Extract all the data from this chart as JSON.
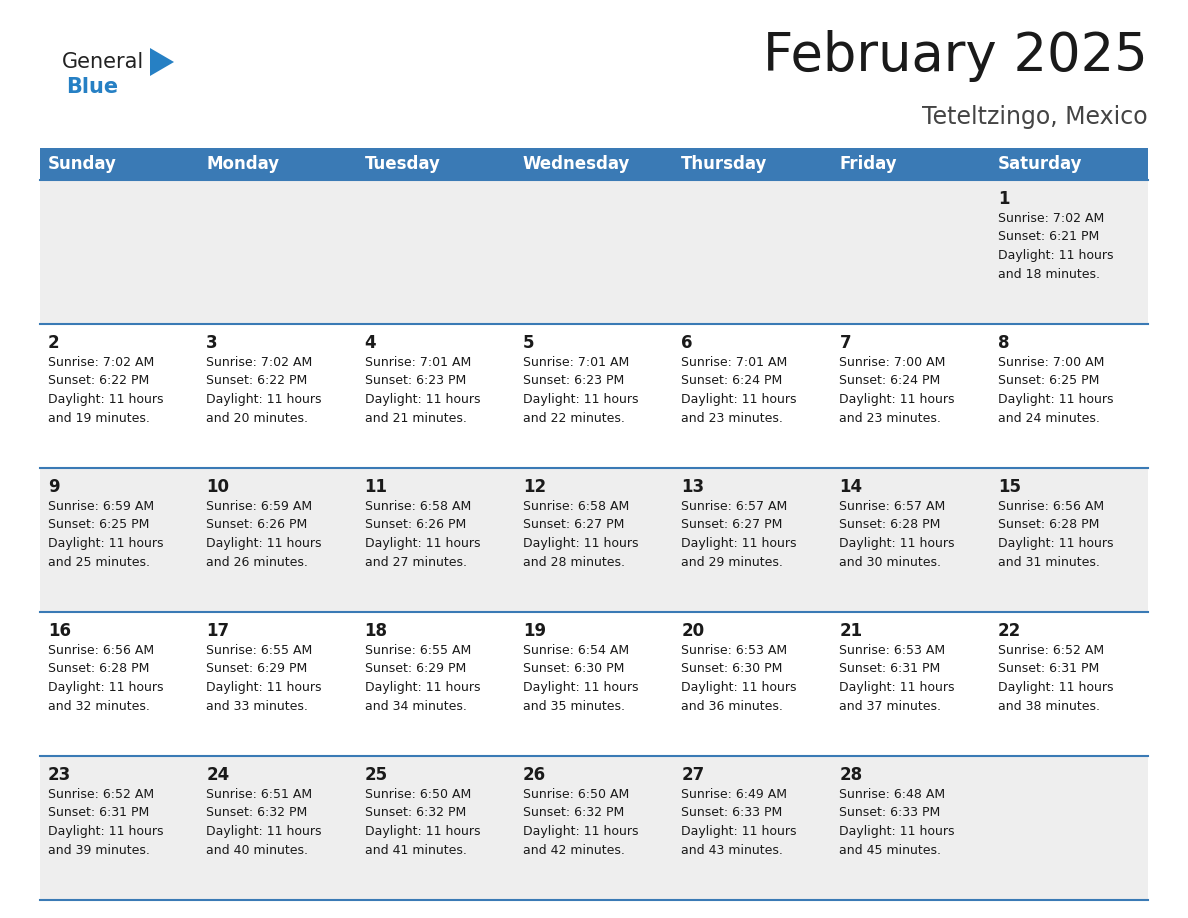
{
  "title": "February 2025",
  "subtitle": "Teteltzingo, Mexico",
  "header_bg_color": "#3a7ab5",
  "header_text_color": "#ffffff",
  "row_bg_colors": [
    "#eeeeee",
    "#ffffff",
    "#eeeeee",
    "#ffffff",
    "#eeeeee"
  ],
  "day_headers": [
    "Sunday",
    "Monday",
    "Tuesday",
    "Wednesday",
    "Thursday",
    "Friday",
    "Saturday"
  ],
  "calendar_data": [
    [
      null,
      null,
      null,
      null,
      null,
      null,
      {
        "day": "1",
        "sunrise": "7:02 AM",
        "sunset": "6:21 PM",
        "daylight": "11 hours\nand 18 minutes."
      }
    ],
    [
      {
        "day": "2",
        "sunrise": "7:02 AM",
        "sunset": "6:22 PM",
        "daylight": "11 hours\nand 19 minutes."
      },
      {
        "day": "3",
        "sunrise": "7:02 AM",
        "sunset": "6:22 PM",
        "daylight": "11 hours\nand 20 minutes."
      },
      {
        "day": "4",
        "sunrise": "7:01 AM",
        "sunset": "6:23 PM",
        "daylight": "11 hours\nand 21 minutes."
      },
      {
        "day": "5",
        "sunrise": "7:01 AM",
        "sunset": "6:23 PM",
        "daylight": "11 hours\nand 22 minutes."
      },
      {
        "day": "6",
        "sunrise": "7:01 AM",
        "sunset": "6:24 PM",
        "daylight": "11 hours\nand 23 minutes."
      },
      {
        "day": "7",
        "sunrise": "7:00 AM",
        "sunset": "6:24 PM",
        "daylight": "11 hours\nand 23 minutes."
      },
      {
        "day": "8",
        "sunrise": "7:00 AM",
        "sunset": "6:25 PM",
        "daylight": "11 hours\nand 24 minutes."
      }
    ],
    [
      {
        "day": "9",
        "sunrise": "6:59 AM",
        "sunset": "6:25 PM",
        "daylight": "11 hours\nand 25 minutes."
      },
      {
        "day": "10",
        "sunrise": "6:59 AM",
        "sunset": "6:26 PM",
        "daylight": "11 hours\nand 26 minutes."
      },
      {
        "day": "11",
        "sunrise": "6:58 AM",
        "sunset": "6:26 PM",
        "daylight": "11 hours\nand 27 minutes."
      },
      {
        "day": "12",
        "sunrise": "6:58 AM",
        "sunset": "6:27 PM",
        "daylight": "11 hours\nand 28 minutes."
      },
      {
        "day": "13",
        "sunrise": "6:57 AM",
        "sunset": "6:27 PM",
        "daylight": "11 hours\nand 29 minutes."
      },
      {
        "day": "14",
        "sunrise": "6:57 AM",
        "sunset": "6:28 PM",
        "daylight": "11 hours\nand 30 minutes."
      },
      {
        "day": "15",
        "sunrise": "6:56 AM",
        "sunset": "6:28 PM",
        "daylight": "11 hours\nand 31 minutes."
      }
    ],
    [
      {
        "day": "16",
        "sunrise": "6:56 AM",
        "sunset": "6:28 PM",
        "daylight": "11 hours\nand 32 minutes."
      },
      {
        "day": "17",
        "sunrise": "6:55 AM",
        "sunset": "6:29 PM",
        "daylight": "11 hours\nand 33 minutes."
      },
      {
        "day": "18",
        "sunrise": "6:55 AM",
        "sunset": "6:29 PM",
        "daylight": "11 hours\nand 34 minutes."
      },
      {
        "day": "19",
        "sunrise": "6:54 AM",
        "sunset": "6:30 PM",
        "daylight": "11 hours\nand 35 minutes."
      },
      {
        "day": "20",
        "sunrise": "6:53 AM",
        "sunset": "6:30 PM",
        "daylight": "11 hours\nand 36 minutes."
      },
      {
        "day": "21",
        "sunrise": "6:53 AM",
        "sunset": "6:31 PM",
        "daylight": "11 hours\nand 37 minutes."
      },
      {
        "day": "22",
        "sunrise": "6:52 AM",
        "sunset": "6:31 PM",
        "daylight": "11 hours\nand 38 minutes."
      }
    ],
    [
      {
        "day": "23",
        "sunrise": "6:52 AM",
        "sunset": "6:31 PM",
        "daylight": "11 hours\nand 39 minutes."
      },
      {
        "day": "24",
        "sunrise": "6:51 AM",
        "sunset": "6:32 PM",
        "daylight": "11 hours\nand 40 minutes."
      },
      {
        "day": "25",
        "sunrise": "6:50 AM",
        "sunset": "6:32 PM",
        "daylight": "11 hours\nand 41 minutes."
      },
      {
        "day": "26",
        "sunrise": "6:50 AM",
        "sunset": "6:32 PM",
        "daylight": "11 hours\nand 42 minutes."
      },
      {
        "day": "27",
        "sunrise": "6:49 AM",
        "sunset": "6:33 PM",
        "daylight": "11 hours\nand 43 minutes."
      },
      {
        "day": "28",
        "sunrise": "6:48 AM",
        "sunset": "6:33 PM",
        "daylight": "11 hours\nand 45 minutes."
      },
      null
    ]
  ],
  "border_color": "#3a7ab5",
  "title_fontsize": 38,
  "subtitle_fontsize": 17,
  "header_fontsize": 12,
  "day_num_fontsize": 12,
  "info_fontsize": 9,
  "logo_general_color": "#222222",
  "logo_blue_color": "#2680c4",
  "fig_width": 11.88,
  "fig_height": 9.18,
  "dpi": 100
}
